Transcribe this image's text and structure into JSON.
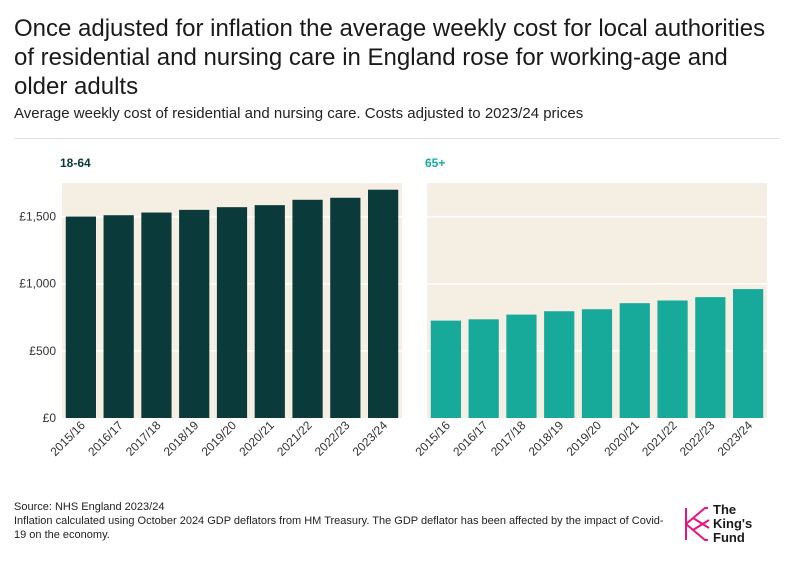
{
  "title": "Once adjusted for inflation the average weekly cost for local authorities of residential and nursing care in England rose for working-age and older adults",
  "subtitle": "Average weekly cost of residential and nursing care. Costs adjusted to 2023/24 prices",
  "chart_data": {
    "type": "bar",
    "categories": [
      "2015/16",
      "2016/17",
      "2017/18",
      "2018/19",
      "2019/20",
      "2020/21",
      "2021/22",
      "2022/23",
      "2023/24"
    ],
    "ylim": [
      0,
      1750
    ],
    "yticks": [
      0,
      500,
      1000,
      1500
    ],
    "yticklabels": [
      "£0",
      "£500",
      "£1,000",
      "£1,500"
    ],
    "xlabel": "",
    "ylabel": "",
    "grid": true,
    "series": [
      {
        "name": "18-64",
        "color": "#0b3a3a",
        "values": [
          1500,
          1510,
          1530,
          1550,
          1570,
          1585,
          1625,
          1640,
          1700
        ]
      },
      {
        "name": "65+",
        "color": "#17a99a",
        "values": [
          725,
          735,
          770,
          795,
          810,
          855,
          875,
          900,
          960
        ]
      }
    ],
    "panel_background": "#f5eee3"
  },
  "source": {
    "line1": "Source: NHS England 2023/24",
    "line2": "Inflation calculated using October 2024 GDP deflators from HM Treasury. The GDP deflator has been affected by the impact of Covid-19 on the economy."
  },
  "logo": {
    "line1": "The",
    "line2": "King's",
    "line3": "Fund",
    "color": "#e6147e"
  }
}
